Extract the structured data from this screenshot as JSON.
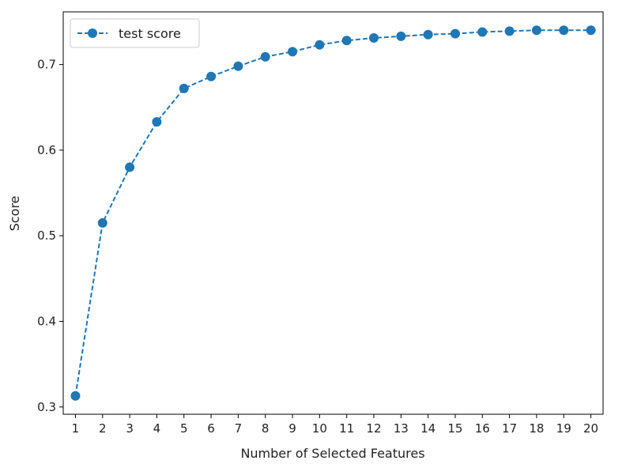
{
  "chart_data": {
    "type": "line",
    "x": [
      1,
      2,
      3,
      4,
      5,
      6,
      7,
      8,
      9,
      10,
      11,
      12,
      13,
      14,
      15,
      16,
      17,
      18,
      19,
      20
    ],
    "series": [
      {
        "name": "test score",
        "values": [
          0.313,
          0.515,
          0.58,
          0.633,
          0.672,
          0.686,
          0.698,
          0.709,
          0.715,
          0.723,
          0.728,
          0.731,
          0.733,
          0.735,
          0.736,
          0.738,
          0.739,
          0.74,
          0.74,
          0.74
        ],
        "color": "#1f77b4",
        "linestyle": "dashed",
        "marker": "circle"
      }
    ],
    "xlabel": "Number of Selected Features",
    "ylabel": "Score",
    "xlim": [
      0.55,
      20.45
    ],
    "ylim": [
      0.2915,
      0.7615
    ],
    "xticks": [
      1,
      2,
      3,
      4,
      5,
      6,
      7,
      8,
      9,
      10,
      11,
      12,
      13,
      14,
      15,
      16,
      17,
      18,
      19,
      20
    ],
    "yticks": [
      0.3,
      0.4,
      0.5,
      0.6,
      0.7
    ],
    "ytick_labels": [
      "0.3",
      "0.4",
      "0.5",
      "0.6",
      "0.7"
    ],
    "grid": false,
    "legend": {
      "position": "top-left"
    }
  }
}
